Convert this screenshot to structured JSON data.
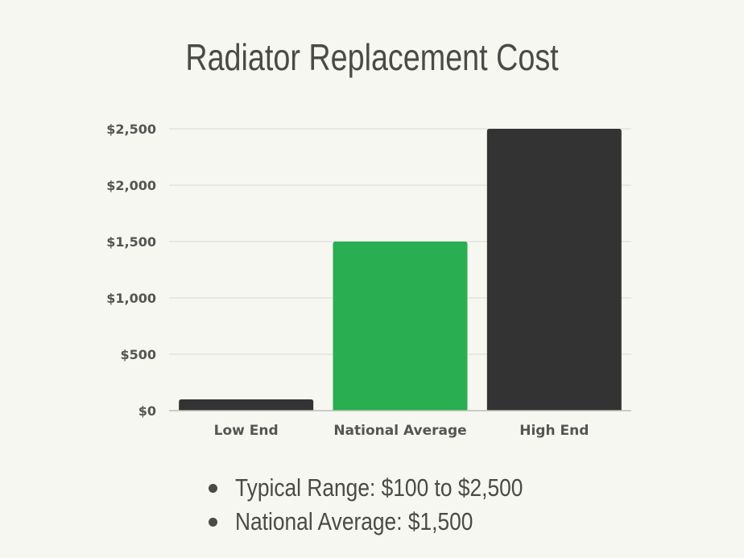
{
  "chart_data": {
    "type": "bar",
    "title": "Radiator Replacement Cost",
    "categories": [
      "Low End",
      "National Average",
      "High End"
    ],
    "values": [
      100,
      1500,
      2500
    ],
    "colors": [
      "#333333",
      "#2aae52",
      "#333333"
    ],
    "xlabel": "",
    "ylabel": "",
    "ylim": [
      0,
      2500
    ],
    "yticks": [
      0,
      500,
      1000,
      1500,
      2000,
      2500
    ],
    "ytick_labels": [
      "$0",
      "$500",
      "$1,000",
      "$1,500",
      "$2,000",
      "$2,500"
    ],
    "grid": true,
    "legend": "none"
  },
  "notes": [
    "Typical Range: $100 to $2,500",
    "National Average: $1,500"
  ]
}
